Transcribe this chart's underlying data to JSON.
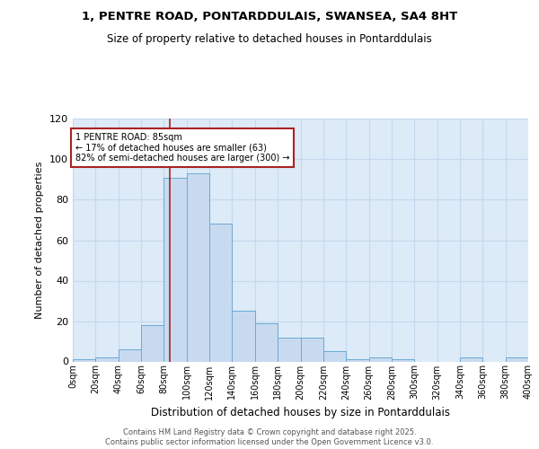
{
  "title": "1, PENTRE ROAD, PONTARDDULAIS, SWANSEA, SA4 8HT",
  "subtitle": "Size of property relative to detached houses in Pontarddulais",
  "xlabel": "Distribution of detached houses by size in Pontarddulais",
  "ylabel": "Number of detached properties",
  "bar_values": [
    1,
    2,
    6,
    18,
    91,
    93,
    68,
    25,
    19,
    12,
    12,
    5,
    1,
    2,
    1,
    0,
    0,
    2,
    0,
    2
  ],
  "bin_edges": [
    0,
    20,
    40,
    60,
    80,
    100,
    120,
    140,
    160,
    180,
    200,
    220,
    240,
    260,
    280,
    300,
    320,
    340,
    360,
    380,
    400
  ],
  "bar_color": "#c8daf0",
  "bar_edge_color": "#6aaad4",
  "bar_bg_color": "#ddeaf8",
  "property_size": 85,
  "vline_color": "#aa2222",
  "annotation_text": "1 PENTRE ROAD: 85sqm\n← 17% of detached houses are smaller (63)\n82% of semi-detached houses are larger (300) →",
  "annotation_box_color": "#ffffff",
  "annotation_box_edge": "#aa2222",
  "ylim": [
    0,
    120
  ],
  "yticks": [
    0,
    20,
    40,
    60,
    80,
    100,
    120
  ],
  "footer_text": "Contains HM Land Registry data © Crown copyright and database right 2025.\nContains public sector information licensed under the Open Government Licence v3.0.",
  "fig_bg_color": "#ffffff",
  "grid_color": "#c5d8ee"
}
